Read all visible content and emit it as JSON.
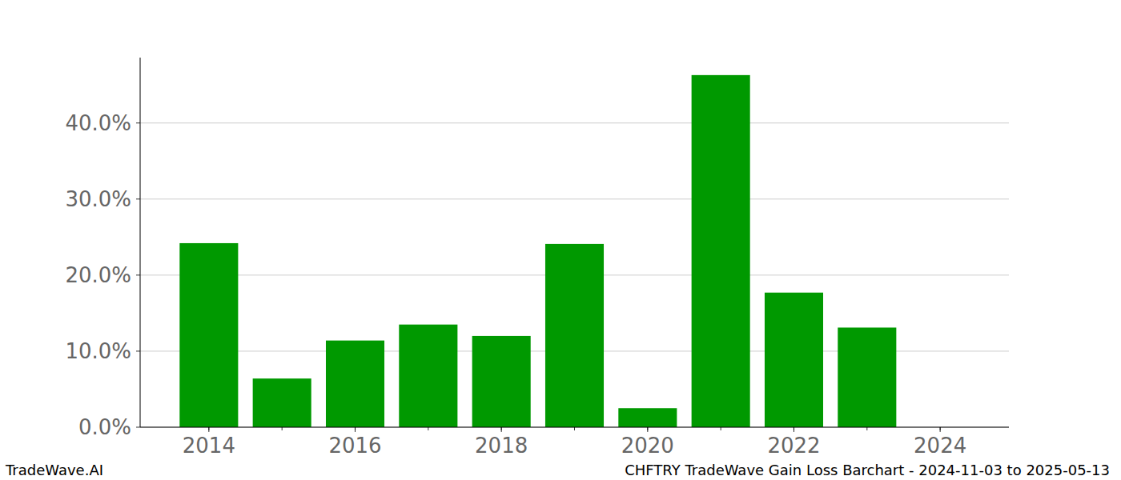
{
  "chart_data": {
    "type": "bar",
    "title": "CHFTRY TradeWave Gain Loss Barchart - 2024-11-03 to 2025-05-13",
    "annotations": [
      "TradeWave.AI"
    ],
    "x": [
      2014,
      2015,
      2016,
      2017,
      2018,
      2019,
      2020,
      2021,
      2022,
      2023,
      2024
    ],
    "values": [
      24.2,
      6.4,
      11.4,
      13.5,
      12.0,
      24.1,
      2.5,
      46.3,
      17.7,
      13.1,
      0
    ],
    "color": "#009900",
    "xlim": [
      2013.06,
      2024.94
    ],
    "xticks": [
      2014,
      2016,
      2018,
      2020,
      2022,
      2024
    ],
    "ylim": [
      0,
      48.6
    ],
    "yticks": [
      {
        "value": 0,
        "label": "0.0%"
      },
      {
        "value": 10,
        "label": "10.0%"
      },
      {
        "value": 20,
        "label": "20.0%"
      },
      {
        "value": 30,
        "label": "30.0%"
      },
      {
        "value": 40,
        "label": "40.0%"
      }
    ],
    "grid": true
  }
}
